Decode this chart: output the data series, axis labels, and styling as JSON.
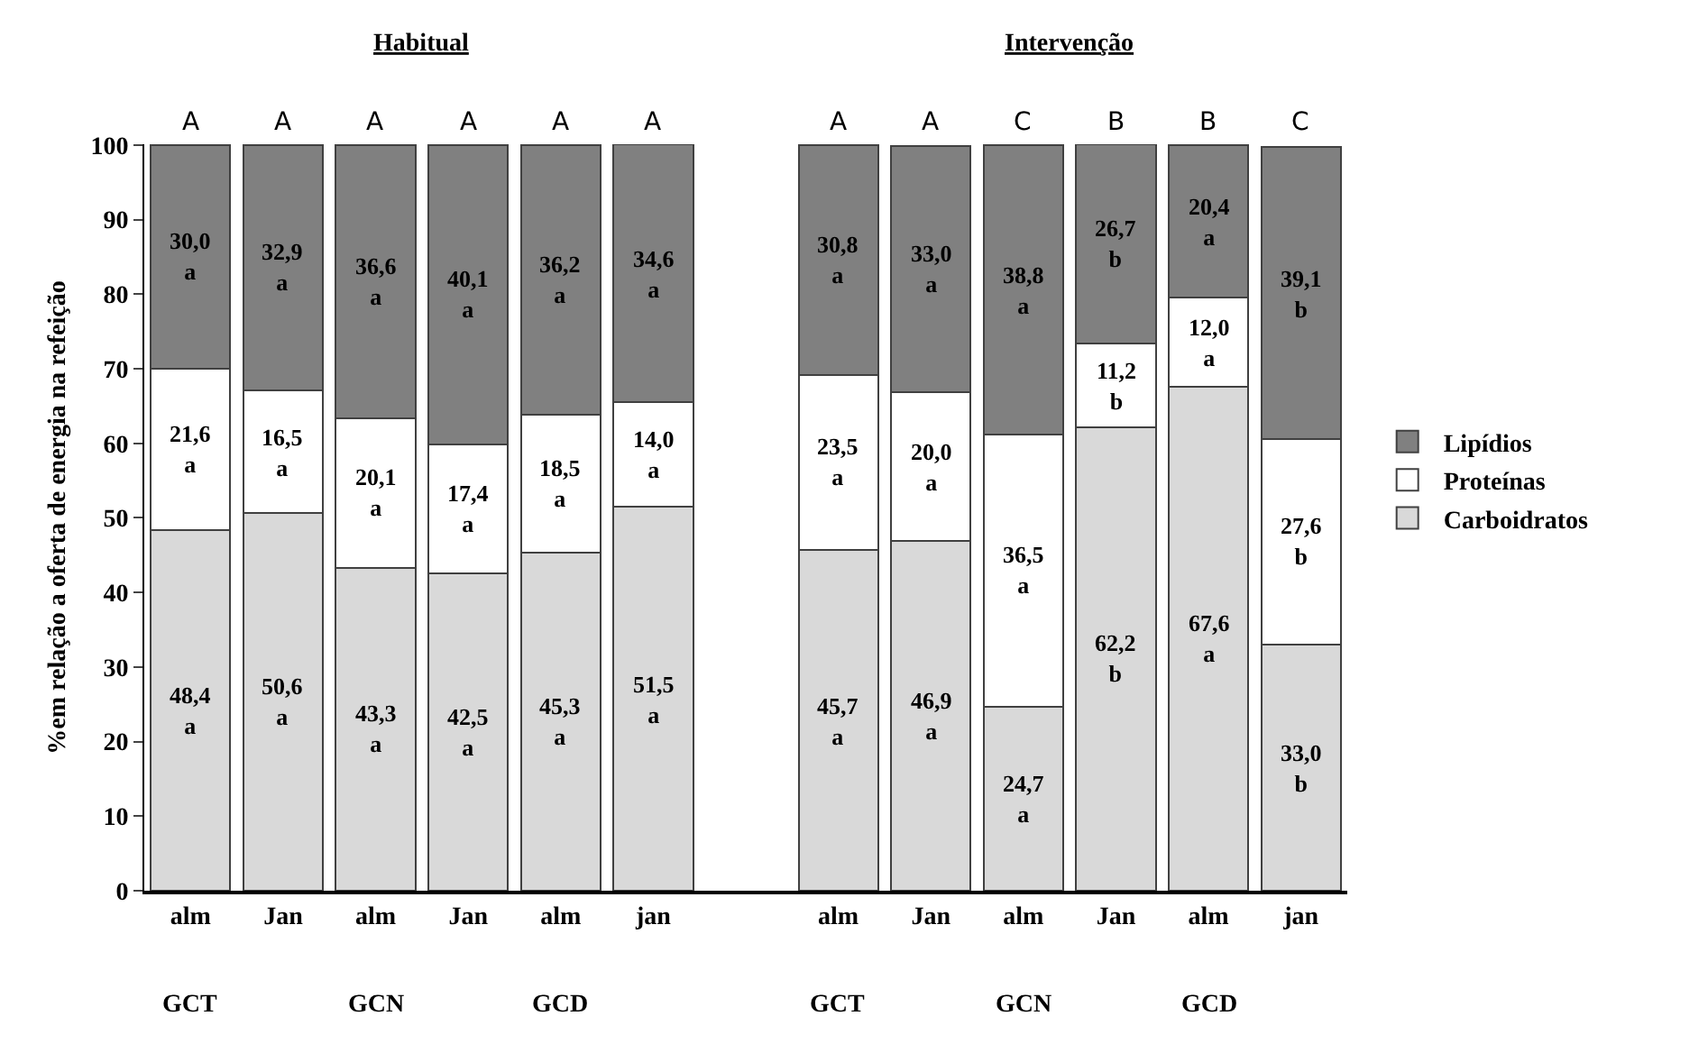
{
  "chart_data": {
    "type": "bar",
    "stacked": true,
    "ylabel": "%em relação a oferta de energia na refeição",
    "categories": [
      "alm",
      "Jan",
      "alm",
      "Jan",
      "alm",
      "jan",
      null,
      "alm",
      "Jan",
      "alm",
      "Jan",
      "alm",
      "jan"
    ],
    "series": [
      {
        "name": "Carboidratos",
        "color": "#d9d9d9",
        "values": [
          48.4,
          50.6,
          43.3,
          42.5,
          45.3,
          51.5,
          null,
          45.7,
          46.9,
          24.7,
          62.2,
          67.6,
          33.0
        ],
        "value_labels": [
          "48,4\na",
          "50,6\na",
          "43,3\na",
          "42,5\na",
          "45,3\na",
          "51,5\na",
          null,
          "45,7\na",
          "46,9\na",
          "24,7\na",
          "62,2\nb",
          "67,6\na",
          "33,0\nb"
        ]
      },
      {
        "name": "Proteínas",
        "color": "#ffffff",
        "values": [
          21.6,
          16.5,
          20.1,
          17.4,
          18.5,
          14.0,
          null,
          23.5,
          20.0,
          36.5,
          11.2,
          12.0,
          27.6
        ],
        "value_labels": [
          "21,6\na",
          "16,5\na",
          "20,1\na",
          "17,4\na",
          "18,5\na",
          "14,0\na",
          null,
          "23,5\na",
          "20,0\na",
          "36,5\na",
          "11,2\nb",
          "12,0\na",
          "27,6\nb"
        ]
      },
      {
        "name": "Lipídios",
        "color": "#808080",
        "values": [
          30.0,
          32.9,
          36.6,
          40.1,
          36.2,
          34.6,
          null,
          30.8,
          33.0,
          38.8,
          26.7,
          20.4,
          39.1
        ],
        "value_labels": [
          "30,0\na",
          "32,9\na",
          "36,6\na",
          "40,1\na",
          "36,2\na",
          "34,6\na",
          null,
          "30,8\na",
          "33,0\na",
          "38,8\na",
          "26,7\nb",
          "20,4\na",
          "39,1\nb"
        ]
      }
    ],
    "ylim": [
      0,
      100.1
    ],
    "yticks": [
      0,
      10,
      20,
      30,
      40,
      50,
      60,
      70,
      80,
      90,
      100
    ],
    "legend": "right",
    "annotations": [
      "Habitual",
      "Intervenção",
      "A",
      "A",
      "A",
      "A",
      "A",
      "A",
      "A",
      "A",
      "C",
      "B",
      "B",
      "C",
      "GCT",
      "GCN",
      "GCD",
      "GCT",
      "GCN",
      "GCD"
    ]
  }
}
